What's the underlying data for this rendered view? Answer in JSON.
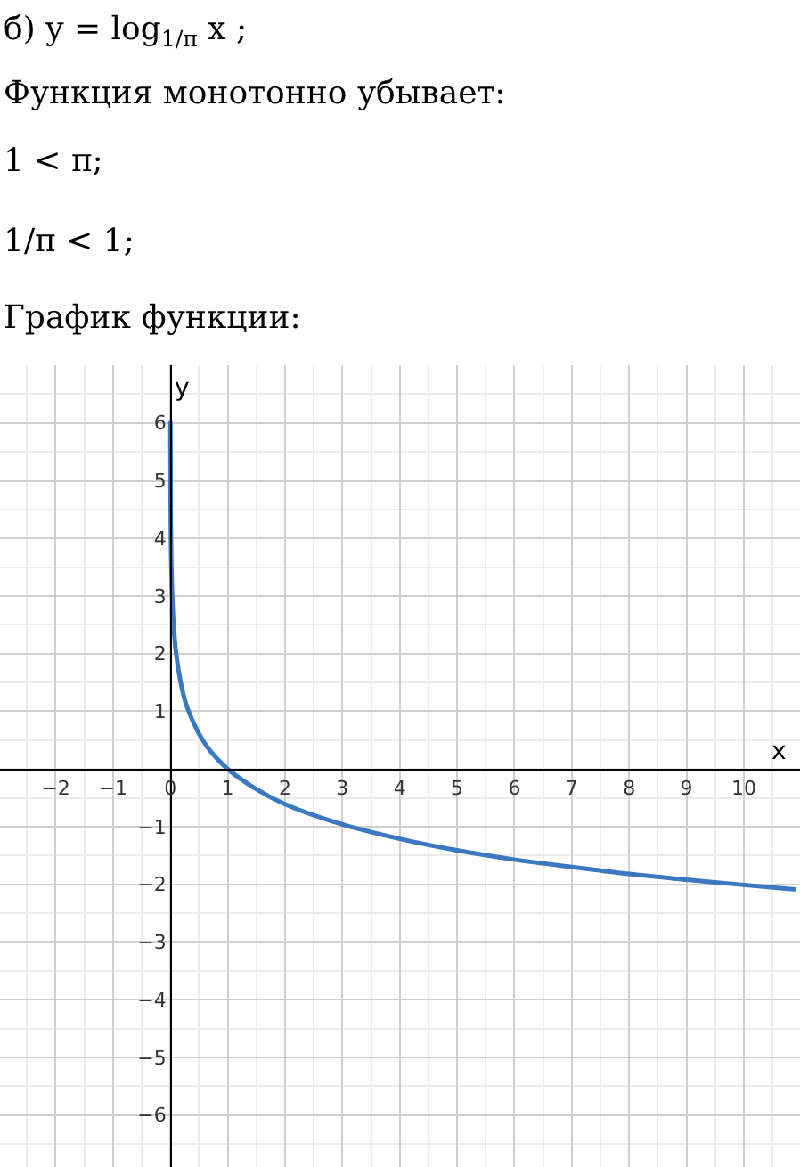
{
  "chart_data": {
    "type": "line",
    "title": "б) y = log$_{1/π}$ x ;",
    "annotations": [
      "Функция монотонно убывает:",
      "1 < π;",
      "1/π < 1;",
      "График функции:"
    ],
    "xlabel": "x",
    "ylabel": "y",
    "x": [
      0.001,
      0.005,
      0.01,
      0.02,
      0.05,
      0.1,
      0.2,
      0.3,
      0.5,
      0.7,
      1,
      1.5,
      2,
      3,
      4,
      5,
      6,
      7,
      8,
      9,
      10,
      10.9
    ],
    "series": [
      {
        "color": "#3a78c2",
        "values": [
          6.03,
          4.63,
          4.02,
          3.42,
          2.62,
          2.01,
          1.41,
          1.05,
          0.61,
          0.31,
          0,
          -0.35,
          -0.61,
          -0.96,
          -1.21,
          -1.41,
          -1.57,
          -1.7,
          -1.82,
          -1.92,
          -2.01,
          -2.09
        ]
      }
    ],
    "xlim": [
      -2.97,
      10.98
    ],
    "ylim": [
      -6.9,
      7.0
    ],
    "xticks": [
      -2,
      -1,
      0,
      1,
      2,
      3,
      4,
      5,
      6,
      7,
      8,
      9,
      10
    ],
    "yticks": [
      -6,
      -5,
      -4,
      -3,
      -2,
      -1,
      1,
      2,
      3,
      4,
      5,
      6
    ],
    "grid": true,
    "marker": "none",
    "line_style": "solid"
  }
}
